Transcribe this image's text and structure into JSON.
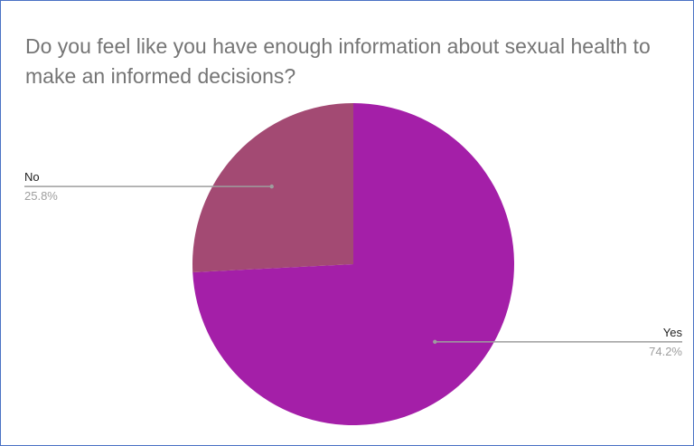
{
  "chart_data": {
    "type": "pie",
    "title": "Do you feel like you have enough information about sexual health to make an informed decisions?",
    "slices": [
      {
        "label": "Yes",
        "value": 74.2,
        "display": "74.2%",
        "color": "#a41fa8"
      },
      {
        "label": "No",
        "value": 25.8,
        "display": "25.8%",
        "color": "#a34a73"
      }
    ],
    "legend": "none",
    "label_style": "callout lines with label and percentage"
  }
}
